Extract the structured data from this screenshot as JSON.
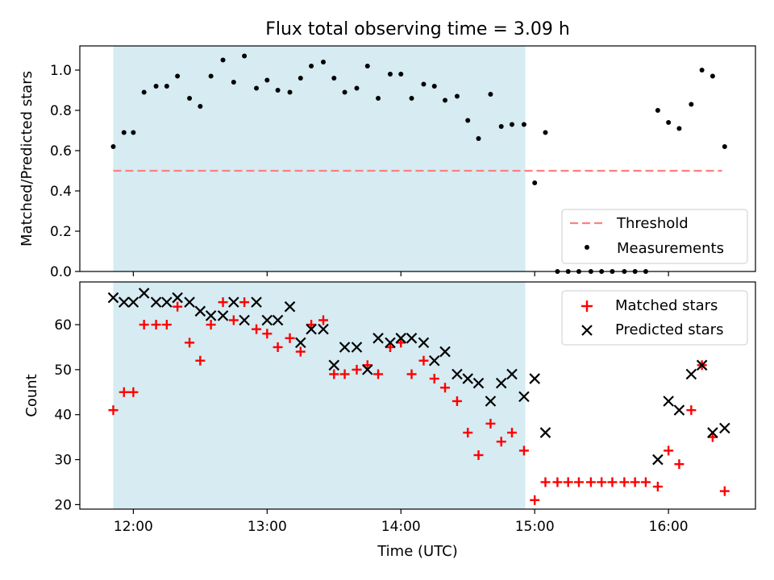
{
  "title": "Flux total observing time = 3.09 h",
  "chart_data": [
    {
      "type": "scatter",
      "panel": "top",
      "ylabel": "Matched/Predicted stars",
      "xlabel": "",
      "xlim": [
        11.6,
        16.65
      ],
      "ylim": [
        0.0,
        1.12
      ],
      "yticks": [
        0.0,
        0.2,
        0.4,
        0.6,
        0.8,
        1.0
      ],
      "ytick_labels": [
        "0.0",
        "0.2",
        "0.4",
        "0.6",
        "0.8",
        "1.0"
      ],
      "xticks": [
        12,
        13,
        14,
        15,
        16
      ],
      "shaded_interval": [
        11.85,
        14.93
      ],
      "threshold": {
        "name": "Threshold",
        "value": 0.5,
        "x_range": [
          11.85,
          16.4
        ],
        "color": "#ff7f7f"
      },
      "legend": {
        "placement": "lower-right",
        "entries": [
          "Threshold",
          "Measurements"
        ]
      },
      "series": [
        {
          "name": "Measurements",
          "marker": "dot",
          "color": "#000000",
          "x": [
            11.85,
            11.93,
            12.0,
            12.08,
            12.17,
            12.25,
            12.33,
            12.42,
            12.5,
            12.58,
            12.67,
            12.75,
            12.83,
            12.92,
            13.0,
            13.08,
            13.17,
            13.25,
            13.33,
            13.42,
            13.5,
            13.58,
            13.67,
            13.75,
            13.83,
            13.92,
            14.0,
            14.08,
            14.17,
            14.25,
            14.33,
            14.42,
            14.5,
            14.58,
            14.67,
            14.75,
            14.83,
            14.92,
            15.0,
            15.08,
            15.17,
            15.25,
            15.33,
            15.42,
            15.5,
            15.58,
            15.67,
            15.75,
            15.83,
            15.92,
            16.0,
            16.08,
            16.17,
            16.25,
            16.33,
            16.42
          ],
          "y": [
            0.62,
            0.69,
            0.69,
            0.89,
            0.92,
            0.92,
            0.97,
            0.86,
            0.82,
            0.97,
            1.05,
            0.94,
            1.07,
            0.91,
            0.95,
            0.9,
            0.89,
            0.96,
            1.02,
            1.04,
            0.96,
            0.89,
            0.91,
            1.02,
            0.86,
            0.98,
            0.98,
            0.86,
            0.93,
            0.92,
            0.85,
            0.87,
            0.75,
            0.66,
            0.88,
            0.72,
            0.73,
            0.73,
            0.44,
            0.69,
            0.0,
            0.0,
            0.0,
            0.0,
            0.0,
            0.0,
            0.0,
            0.0,
            0.0,
            0.8,
            0.74,
            0.71,
            0.83,
            1.0,
            0.97,
            0.62
          ]
        }
      ]
    },
    {
      "type": "scatter",
      "panel": "bottom",
      "ylabel": "Count",
      "xlabel": "Time (UTC)",
      "xlim": [
        11.6,
        16.65
      ],
      "ylim": [
        19,
        69.5
      ],
      "yticks": [
        20,
        30,
        40,
        50,
        60
      ],
      "ytick_labels": [
        "20",
        "30",
        "40",
        "50",
        "60"
      ],
      "xticks": [
        12,
        13,
        14,
        15,
        16
      ],
      "xtick_labels": [
        "12:00",
        "13:00",
        "14:00",
        "15:00",
        "16:00"
      ],
      "shaded_interval": [
        11.85,
        14.93
      ],
      "legend": {
        "placement": "upper-right",
        "entries": [
          "Matched stars",
          "Predicted stars"
        ]
      },
      "series": [
        {
          "name": "Matched stars",
          "marker": "plus",
          "color": "#ff0000",
          "x": [
            11.85,
            11.93,
            12.0,
            12.08,
            12.17,
            12.25,
            12.33,
            12.42,
            12.5,
            12.58,
            12.67,
            12.75,
            12.83,
            12.92,
            13.0,
            13.08,
            13.17,
            13.25,
            13.33,
            13.42,
            13.5,
            13.58,
            13.67,
            13.75,
            13.83,
            13.92,
            14.0,
            14.08,
            14.17,
            14.25,
            14.33,
            14.42,
            14.5,
            14.58,
            14.67,
            14.75,
            14.83,
            14.92,
            15.0,
            15.08,
            15.17,
            15.25,
            15.33,
            15.42,
            15.5,
            15.58,
            15.67,
            15.75,
            15.83,
            15.92,
            16.0,
            16.08,
            16.17,
            16.25,
            16.33,
            16.42
          ],
          "y": [
            41,
            45,
            45,
            60,
            60,
            60,
            64,
            56,
            52,
            60,
            65,
            61,
            65,
            59,
            58,
            55,
            57,
            54,
            60,
            61,
            49,
            49,
            50,
            51,
            49,
            55,
            56,
            49,
            52,
            48,
            46,
            43,
            36,
            31,
            38,
            34,
            36,
            32,
            21,
            25,
            25,
            25,
            25,
            25,
            25,
            25,
            25,
            25,
            25,
            24,
            32,
            29,
            41,
            51,
            35,
            23
          ]
        },
        {
          "name": "Predicted stars",
          "marker": "x",
          "color": "#000000",
          "x": [
            11.85,
            11.93,
            12.0,
            12.08,
            12.17,
            12.25,
            12.33,
            12.42,
            12.5,
            12.58,
            12.67,
            12.75,
            12.83,
            12.92,
            13.0,
            13.08,
            13.17,
            13.25,
            13.33,
            13.42,
            13.5,
            13.58,
            13.67,
            13.75,
            13.83,
            13.92,
            14.0,
            14.08,
            14.17,
            14.25,
            14.33,
            14.42,
            14.5,
            14.58,
            14.67,
            14.75,
            14.83,
            14.92,
            15.0,
            15.08,
            15.92,
            16.0,
            16.08,
            16.17,
            16.25,
            16.33,
            16.42
          ],
          "y": [
            66,
            65,
            65,
            67,
            65,
            65,
            66,
            65,
            63,
            62,
            62,
            65,
            61,
            65,
            61,
            61,
            64,
            56,
            59,
            59,
            51,
            55,
            55,
            50,
            57,
            56,
            57,
            57,
            56,
            52,
            54,
            49,
            48,
            47,
            43,
            47,
            49,
            44,
            48,
            36,
            30,
            43,
            41,
            49,
            51,
            36,
            37
          ]
        }
      ]
    }
  ]
}
